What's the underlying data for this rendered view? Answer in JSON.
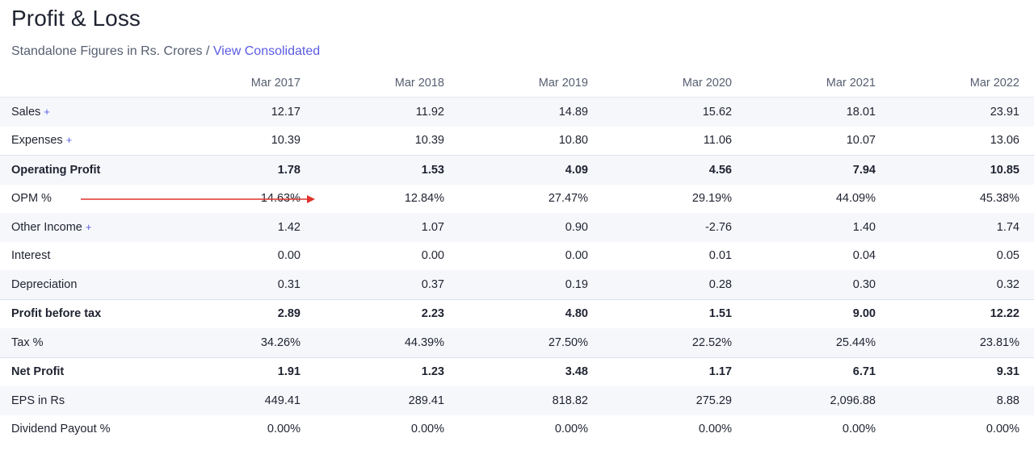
{
  "header": {
    "title": "Profit & Loss",
    "subtitle": "Standalone Figures in Rs. Crores /",
    "consolidated_link": "View Consolidated"
  },
  "table": {
    "columns": [
      "",
      "Mar 2017",
      "Mar 2018",
      "Mar 2019",
      "Mar 2020",
      "Mar 2021",
      "Mar 2022"
    ],
    "plus_symbol": "+",
    "rows": [
      {
        "label": "Sales",
        "expandable": true,
        "values": [
          "12.17",
          "11.92",
          "14.89",
          "15.62",
          "18.01",
          "23.91"
        ]
      },
      {
        "label": "Expenses",
        "expandable": true,
        "values": [
          "10.39",
          "10.39",
          "10.80",
          "11.06",
          "10.07",
          "13.06"
        ]
      },
      {
        "label": "Operating Profit",
        "bold": true,
        "values": [
          "1.78",
          "1.53",
          "4.09",
          "4.56",
          "7.94",
          "10.85"
        ]
      },
      {
        "label": "OPM %",
        "values": [
          "14.63%",
          "12.84%",
          "27.47%",
          "29.19%",
          "44.09%",
          "45.38%"
        ]
      },
      {
        "label": "Other Income",
        "expandable": true,
        "values": [
          "1.42",
          "1.07",
          "0.90",
          "-2.76",
          "1.40",
          "1.74"
        ]
      },
      {
        "label": "Interest",
        "values": [
          "0.00",
          "0.00",
          "0.00",
          "0.01",
          "0.04",
          "0.05"
        ]
      },
      {
        "label": "Depreciation",
        "values": [
          "0.31",
          "0.37",
          "0.19",
          "0.28",
          "0.30",
          "0.32"
        ]
      },
      {
        "label": "Profit before tax",
        "bold": true,
        "values": [
          "2.89",
          "2.23",
          "4.80",
          "1.51",
          "9.00",
          "12.22"
        ]
      },
      {
        "label": "Tax %",
        "values": [
          "34.26%",
          "44.39%",
          "27.50%",
          "22.52%",
          "25.44%",
          "23.81%"
        ]
      },
      {
        "label": "Net Profit",
        "bold": true,
        "values": [
          "1.91",
          "1.23",
          "3.48",
          "1.17",
          "6.71",
          "9.31"
        ]
      },
      {
        "label": "EPS in Rs",
        "values": [
          "449.41",
          "289.41",
          "818.82",
          "275.29",
          "2,096.88",
          "8.88"
        ]
      },
      {
        "label": "Dividend Payout %",
        "values": [
          "0.00%",
          "0.00%",
          "0.00%",
          "0.00%",
          "0.00%",
          "0.00%"
        ]
      }
    ]
  },
  "colors": {
    "accent": "#5b5ce2",
    "annotation_arrow": "#e0322b",
    "stripe": "#f6f7fb"
  }
}
